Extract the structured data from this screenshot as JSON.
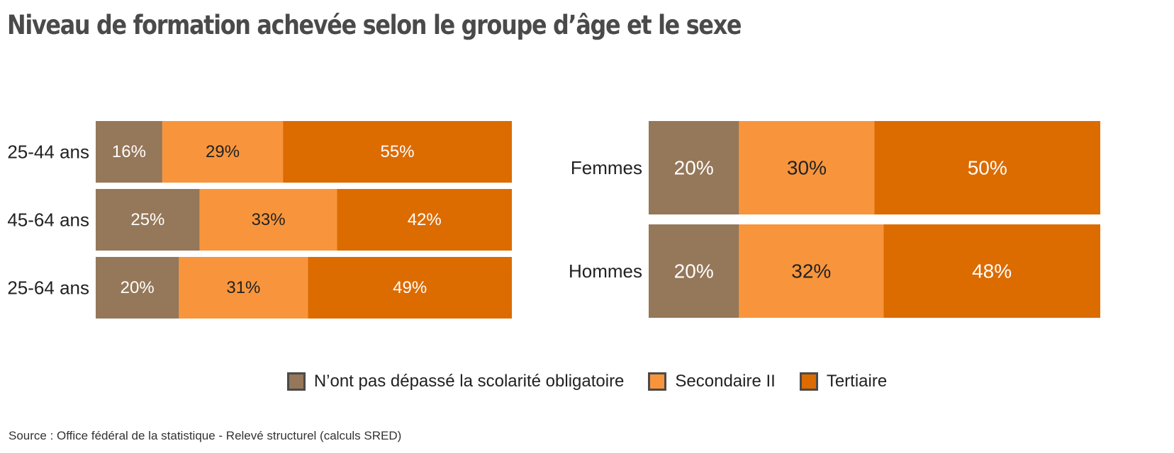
{
  "title": "Niveau de formation achevée selon le groupe d’âge et le sexe",
  "source": "Source : Office fédéral de la statistique - Relevé structurel (calculs SRED)",
  "colors": {
    "obligatoire": "#957759",
    "secondaire": "#f8953c",
    "tertiaire": "#dc6b00"
  },
  "chart_data": [
    {
      "type": "bar",
      "orientation": "horizontal",
      "stacked": true,
      "categories": [
        "25-44 ans",
        "45-64 ans",
        "25-64 ans"
      ],
      "series": [
        {
          "name": "N’ont pas dépassé la scolarité obligatoire",
          "values": [
            16,
            25,
            20
          ],
          "labels": [
            "16%",
            "25%",
            "20%"
          ]
        },
        {
          "name": "Secondaire II",
          "values": [
            29,
            33,
            31
          ],
          "labels": [
            "29%",
            "33%",
            "31%"
          ]
        },
        {
          "name": "Tertiaire",
          "values": [
            55,
            42,
            49
          ],
          "labels": [
            "55%",
            "42%",
            "49%"
          ]
        }
      ],
      "xlim": [
        0,
        100
      ]
    },
    {
      "type": "bar",
      "orientation": "horizontal",
      "stacked": true,
      "categories": [
        "Femmes",
        "Hommes"
      ],
      "series": [
        {
          "name": "N’ont pas dépassé la scolarité obligatoire",
          "values": [
            20,
            20
          ],
          "labels": [
            "20%",
            "20%"
          ]
        },
        {
          "name": "Secondaire II",
          "values": [
            30,
            32
          ],
          "labels": [
            "30%",
            "32%"
          ]
        },
        {
          "name": "Tertiaire",
          "values": [
            50,
            48
          ],
          "labels": [
            "50%",
            "48%"
          ]
        }
      ],
      "xlim": [
        0,
        100
      ]
    }
  ],
  "legend": {
    "position": "bottom",
    "items": [
      {
        "label": "N’ont pas dépassé la scolarité obligatoire",
        "color": "#957759"
      },
      {
        "label": "Secondaire II",
        "color": "#f8953c"
      },
      {
        "label": "Tertiaire",
        "color": "#dc6b00"
      }
    ]
  }
}
